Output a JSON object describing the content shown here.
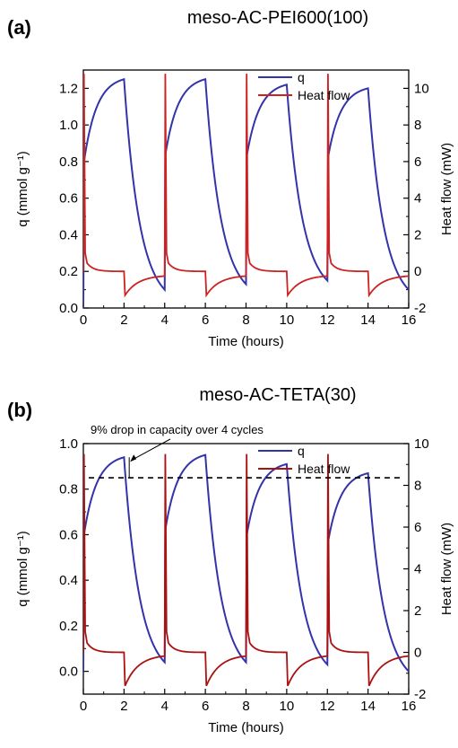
{
  "chart_data": [
    {
      "panel_label": "(a)",
      "title": "meso-AC-PEI600(100)",
      "type": "line",
      "xlabel": "Time (hours)",
      "ylabel_left": "q (mmol g⁻¹)",
      "ylabel_right": "Heat flow (mW)",
      "xlim": [
        0,
        16
      ],
      "ylim_left": [
        0,
        1.3
      ],
      "ylim_right": [
        -2,
        11
      ],
      "xticks": [
        0,
        2,
        4,
        6,
        8,
        10,
        12,
        14,
        16
      ],
      "yticks_left": [
        0.0,
        0.2,
        0.4,
        0.6,
        0.8,
        1.0,
        1.2
      ],
      "yticks_right": [
        -2,
        0,
        2,
        4,
        6,
        8,
        10
      ],
      "legend_position": "top-right",
      "annotation": "",
      "dashed_level": null,
      "series": [
        {
          "name": "q",
          "axis": "left",
          "color": "#3333aa",
          "adsorption_cycles": [
            {
              "start": 0,
              "end": 2,
              "q_start": 0.0,
              "q_end": 1.25
            },
            {
              "start": 4,
              "end": 6,
              "q_start": 0.1,
              "q_end": 1.25
            },
            {
              "start": 8,
              "end": 10,
              "q_start": 0.13,
              "q_end": 1.22
            },
            {
              "start": 12,
              "end": 14,
              "q_start": 0.15,
              "q_end": 1.2
            }
          ],
          "desorption_end_q": 0.1
        },
        {
          "name": "Heat flow",
          "axis": "right",
          "color": "#cc2222",
          "peak": 10.8,
          "adsorption_baseline": 0,
          "desorption_dip": -1.3,
          "desorption_recovery": -0.2
        }
      ]
    },
    {
      "panel_label": "(b)",
      "title": "meso-AC-TETA(30)",
      "type": "line",
      "xlabel": "Time (hours)",
      "ylabel_left": "q (mmol g⁻¹)",
      "ylabel_right": "Heat flow (mW)",
      "xlim": [
        0,
        16
      ],
      "ylim_left": [
        -0.1,
        1.0
      ],
      "ylim_right": [
        -2,
        10
      ],
      "xticks": [
        0,
        2,
        4,
        6,
        8,
        10,
        12,
        14,
        16
      ],
      "yticks_left": [
        0.0,
        0.2,
        0.4,
        0.6,
        0.8,
        1.0
      ],
      "yticks_right": [
        -2,
        0,
        2,
        4,
        6,
        8,
        10
      ],
      "legend_position": "top-right",
      "annotation": "9% drop in capacity over 4 cycles",
      "dashed_level": 0.85,
      "series": [
        {
          "name": "q",
          "axis": "left",
          "color": "#3333aa",
          "adsorption_cycles": [
            {
              "start": 0,
              "end": 2,
              "q_start": 0.0,
              "q_end": 0.94
            },
            {
              "start": 4,
              "end": 6,
              "q_start": 0.04,
              "q_end": 0.95
            },
            {
              "start": 8,
              "end": 10,
              "q_start": 0.04,
              "q_end": 0.91
            },
            {
              "start": 12,
              "end": 14,
              "q_start": 0.03,
              "q_end": 0.87
            }
          ],
          "desorption_end_q": 0.0
        },
        {
          "name": "Heat flow",
          "axis": "right",
          "color": "#aa1111",
          "peak": 9.5,
          "adsorption_baseline": 0,
          "desorption_dip": -1.6,
          "desorption_recovery": -0.1
        }
      ]
    }
  ]
}
